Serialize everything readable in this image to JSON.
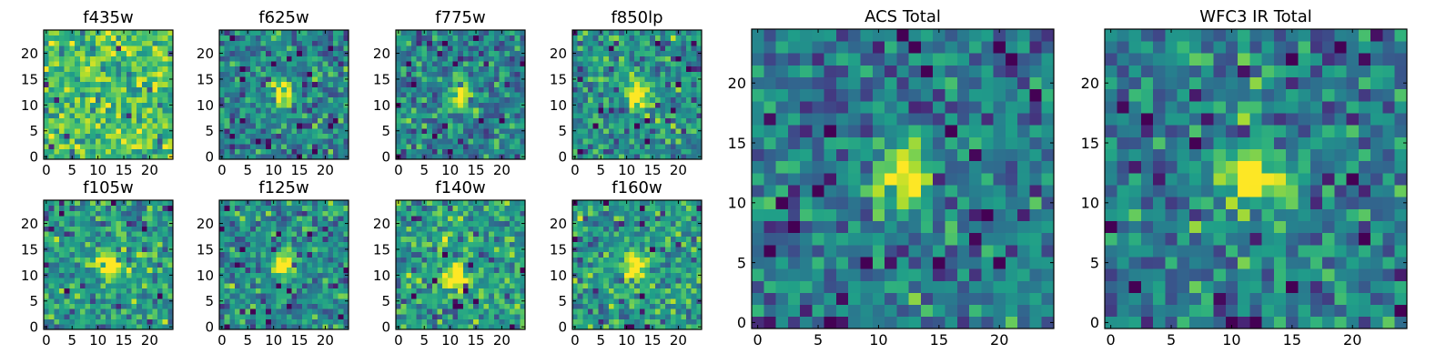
{
  "colormap": "viridis",
  "chart_data": [
    {
      "type": "heatmap",
      "title": "f435w",
      "grid": [
        25,
        25
      ],
      "xlim": [
        0,
        24
      ],
      "ylim": [
        0,
        24
      ],
      "xticks": [
        0,
        5,
        10,
        15,
        20
      ],
      "yticks": [
        0,
        5,
        10,
        15,
        20
      ],
      "source_peak": null,
      "noise_bias": 0.7,
      "seed": 11
    },
    {
      "type": "heatmap",
      "title": "f625w",
      "grid": [
        25,
        25
      ],
      "xlim": [
        0,
        24
      ],
      "ylim": [
        0,
        24
      ],
      "xticks": [
        0,
        5,
        10,
        15,
        20
      ],
      "yticks": [
        0,
        5,
        10,
        15,
        20
      ],
      "source_peak": [
        12,
        12
      ],
      "noise_bias": 0.45,
      "seed": 23
    },
    {
      "type": "heatmap",
      "title": "f775w",
      "grid": [
        25,
        25
      ],
      "xlim": [
        0,
        24
      ],
      "ylim": [
        0,
        24
      ],
      "xticks": [
        0,
        5,
        10,
        15,
        20
      ],
      "yticks": [
        0,
        5,
        10,
        15,
        20
      ],
      "source_peak": [
        12,
        12
      ],
      "noise_bias": 0.45,
      "seed": 37
    },
    {
      "type": "heatmap",
      "title": "f850lp",
      "grid": [
        25,
        25
      ],
      "xlim": [
        0,
        24
      ],
      "ylim": [
        0,
        24
      ],
      "xticks": [
        0,
        5,
        10,
        15,
        20
      ],
      "yticks": [
        0,
        5,
        10,
        15,
        20
      ],
      "source_peak": [
        12,
        12
      ],
      "noise_bias": 0.5,
      "seed": 41
    },
    {
      "type": "heatmap",
      "title": "f105w",
      "grid": [
        25,
        25
      ],
      "xlim": [
        0,
        24
      ],
      "ylim": [
        0,
        24
      ],
      "xticks": [
        0,
        5,
        10,
        15,
        20
      ],
      "yticks": [
        0,
        5,
        10,
        15,
        20
      ],
      "source_peak": [
        12,
        12
      ],
      "noise_bias": 0.55,
      "seed": 53
    },
    {
      "type": "heatmap",
      "title": "f125w",
      "grid": [
        25,
        25
      ],
      "xlim": [
        0,
        24
      ],
      "ylim": [
        0,
        24
      ],
      "xticks": [
        0,
        5,
        10,
        15,
        20
      ],
      "yticks": [
        0,
        5,
        10,
        15,
        20
      ],
      "source_peak": [
        12,
        12
      ],
      "noise_bias": 0.5,
      "seed": 67
    },
    {
      "type": "heatmap",
      "title": "f140w",
      "grid": [
        25,
        25
      ],
      "xlim": [
        0,
        24
      ],
      "ylim": [
        0,
        24
      ],
      "xticks": [
        0,
        5,
        10,
        15,
        20
      ],
      "yticks": [
        0,
        5,
        10,
        15,
        20
      ],
      "source_peak": [
        11,
        10
      ],
      "noise_bias": 0.55,
      "seed": 71
    },
    {
      "type": "heatmap",
      "title": "f160w",
      "grid": [
        25,
        25
      ],
      "xlim": [
        0,
        24
      ],
      "ylim": [
        0,
        24
      ],
      "xticks": [
        0,
        5,
        10,
        15,
        20
      ],
      "yticks": [
        0,
        5,
        10,
        15,
        20
      ],
      "source_peak": [
        12,
        12
      ],
      "noise_bias": 0.55,
      "seed": 83
    },
    {
      "type": "heatmap",
      "title": "ACS Total",
      "grid": [
        25,
        25
      ],
      "xlim": [
        0,
        24
      ],
      "ylim": [
        0,
        24
      ],
      "xticks": [
        0,
        5,
        10,
        15,
        20
      ],
      "yticks": [
        0,
        5,
        10,
        15,
        20
      ],
      "source_peak": [
        12,
        12
      ],
      "noise_bias": 0.4,
      "seed": 97
    },
    {
      "type": "heatmap",
      "title": "WFC3 IR Total",
      "grid": [
        25,
        25
      ],
      "xlim": [
        0,
        24
      ],
      "ylim": [
        0,
        24
      ],
      "xticks": [
        0,
        5,
        10,
        15,
        20
      ],
      "yticks": [
        0,
        5,
        10,
        15,
        20
      ],
      "source_peak": [
        12,
        12
      ],
      "noise_bias": 0.45,
      "seed": 101
    }
  ]
}
